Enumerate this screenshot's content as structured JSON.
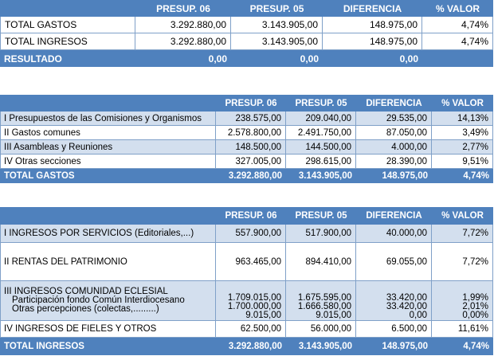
{
  "summary": {
    "headers": [
      "PRESUP. 06",
      "PRESUP. 05",
      "DIFERENCIA",
      "% VALOR"
    ],
    "rows": [
      {
        "label": "TOTAL GASTOS",
        "p06": "3.292.880,00",
        "p05": "3.143.905,00",
        "dif": "148.975,00",
        "pct": "4,74%"
      },
      {
        "label": "TOTAL INGRESOS",
        "p06": "3.292.880,00",
        "p05": "3.143.905,00",
        "dif": "148.975,00",
        "pct": "4,74%"
      }
    ],
    "total": {
      "label": "RESULTADO",
      "p06": "0,00",
      "p05": "0,00",
      "dif": "0,00",
      "pct": ""
    }
  },
  "gastos": {
    "headers": [
      "PRESUP. 06",
      "PRESUP. 05",
      "DIFERENCIA",
      "% VALOR"
    ],
    "rows": [
      {
        "label": "I  Presupuestos de las Comisiones y Organismos",
        "p06": "238.575,00",
        "p05": "209.040,00",
        "dif": "29.535,00",
        "pct": "14,13%"
      },
      {
        "label": "II  Gastos comunes",
        "p06": "2.578.800,00",
        "p05": "2.491.750,00",
        "dif": "87.050,00",
        "pct": "3,49%"
      },
      {
        "label": "III  Asambleas y Reuniones",
        "p06": "148.500,00",
        "p05": "144.500,00",
        "dif": "4.000,00",
        "pct": "2,77%"
      },
      {
        "label": "IV  Otras secciones",
        "p06": "327.005,00",
        "p05": "298.615,00",
        "dif": "28.390,00",
        "pct": "9,51%"
      }
    ],
    "total": {
      "label": "TOTAL GASTOS",
      "p06": "3.292.880,00",
      "p05": "3.143.905,00",
      "dif": "148.975,00",
      "pct": "4,74%"
    }
  },
  "ingresos": {
    "headers": [
      "PRESUP. 06",
      "PRESUP. 05",
      "DIFERENCIA",
      "% VALOR"
    ],
    "row1": {
      "label": "I  INGRESOS POR SERVICIOS (Editoriales,...)",
      "p06": "557.900,00",
      "p05": "517.900,00",
      "dif": "40.000,00",
      "pct": "7,72%"
    },
    "row2": {
      "label": "II  RENTAS DEL PATRIMONIO",
      "p06": "963.465,00",
      "p05": "894.410,00",
      "dif": "69.055,00",
      "pct": "7,72%"
    },
    "row3": {
      "label": "III INGRESOS COMUNIDAD ECLESIAL",
      "p06": "1.709.015,00",
      "p05": "1.675.595,00",
      "dif": "33.420,00",
      "pct": "1,99%",
      "sub1": {
        "label": "Participación fondo Común Interdiocesano",
        "p06": "1.700.000,00",
        "p05": "1.666.580,00",
        "dif": "33.420,00",
        "pct": "2,01%"
      },
      "sub2": {
        "label": "Otras percepciones (colectas,.........)",
        "p06": "9.015,00",
        "p05": "9.015,00",
        "dif": "0,00",
        "pct": "0,00%"
      }
    },
    "row4": {
      "label": "IV INGRESOS DE FIELES Y OTROS",
      "p06": "62.500,00",
      "p05": "56.000,00",
      "dif": "6.500,00",
      "pct": "11,61%"
    },
    "total": {
      "label": "TOTAL INGRESOS",
      "p06": "3.292.880,00",
      "p05": "3.143.905,00",
      "dif": "148.975,00",
      "pct": "4,74%"
    }
  },
  "colors": {
    "header": "#4f81bd",
    "band": "#d3dfee",
    "border": "#7fa0c8"
  }
}
